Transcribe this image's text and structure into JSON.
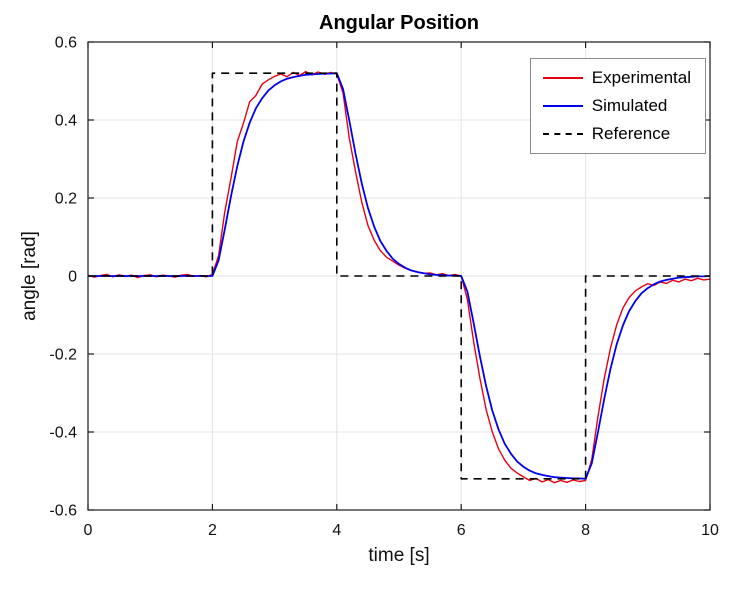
{
  "chart_data": {
    "type": "line",
    "title": "Angular Position",
    "xlabel": "time [s]",
    "ylabel": "angle [rad]",
    "xlim": [
      0,
      10
    ],
    "ylim": [
      -0.6,
      0.6
    ],
    "xticks": [
      0,
      2,
      4,
      6,
      8,
      10
    ],
    "xtick_labels": [
      "0",
      "2",
      "4",
      "6",
      "8",
      "10"
    ],
    "yticks": [
      -0.6,
      -0.4,
      -0.2,
      0,
      0.2,
      0.4,
      0.6
    ],
    "ytick_labels": [
      "-0.6",
      "-0.4",
      "-0.2",
      "0",
      "0.2",
      "0.4",
      "0.6"
    ],
    "grid": true,
    "legend_position": "top-right",
    "series": [
      {
        "name": "Experimental",
        "color": "#e60012",
        "dash": "solid",
        "width": 1.4,
        "t0": 0,
        "dt": 0.1,
        "y": [
          0.002,
          -0.003,
          0.001,
          0.004,
          -0.002,
          0.003,
          -0.001,
          0.002,
          -0.004,
          0.001,
          0.003,
          -0.002,
          0.002,
          0.0,
          -0.003,
          0.002,
          0.004,
          -0.001,
          0.001,
          -0.002,
          0.004,
          0.052,
          0.165,
          0.252,
          0.345,
          0.392,
          0.447,
          0.463,
          0.492,
          0.503,
          0.512,
          0.518,
          0.511,
          0.522,
          0.514,
          0.524,
          0.516,
          0.523,
          0.517,
          0.522,
          0.518,
          0.47,
          0.355,
          0.268,
          0.19,
          0.13,
          0.092,
          0.065,
          0.048,
          0.038,
          0.028,
          0.02,
          0.014,
          0.01,
          0.007,
          0.008,
          0.003,
          0.006,
          0.001,
          0.004,
          0.0,
          -0.06,
          -0.168,
          -0.262,
          -0.342,
          -0.4,
          -0.443,
          -0.472,
          -0.493,
          -0.505,
          -0.515,
          -0.524,
          -0.519,
          -0.528,
          -0.522,
          -0.53,
          -0.524,
          -0.529,
          -0.523,
          -0.527,
          -0.524,
          -0.47,
          -0.36,
          -0.262,
          -0.185,
          -0.125,
          -0.082,
          -0.055,
          -0.038,
          -0.028,
          -0.02,
          -0.024,
          -0.015,
          -0.019,
          -0.011,
          -0.015,
          -0.008,
          -0.012,
          -0.006,
          -0.01,
          -0.008
        ]
      },
      {
        "name": "Simulated",
        "color": "#0000ee",
        "dash": "solid",
        "width": 1.8,
        "t0": 0,
        "dt": 0.1,
        "y": [
          0,
          0,
          0,
          0,
          0,
          0,
          0,
          0,
          0,
          0,
          0,
          0,
          0,
          0,
          0,
          0,
          0,
          0,
          0,
          0,
          0,
          0.04,
          0.12,
          0.206,
          0.282,
          0.345,
          0.393,
          0.43,
          0.456,
          0.476,
          0.489,
          0.499,
          0.506,
          0.51,
          0.513,
          0.516,
          0.517,
          0.518,
          0.519,
          0.519,
          0.52,
          0.48,
          0.4,
          0.314,
          0.238,
          0.175,
          0.127,
          0.09,
          0.064,
          0.044,
          0.031,
          0.021,
          0.014,
          0.01,
          0.007,
          0.004,
          0.003,
          0.002,
          0.001,
          0.001,
          0.0,
          -0.04,
          -0.12,
          -0.206,
          -0.282,
          -0.345,
          -0.393,
          -0.43,
          -0.456,
          -0.476,
          -0.489,
          -0.499,
          -0.506,
          -0.51,
          -0.513,
          -0.516,
          -0.517,
          -0.518,
          -0.519,
          -0.519,
          -0.52,
          -0.48,
          -0.4,
          -0.314,
          -0.238,
          -0.175,
          -0.127,
          -0.09,
          -0.064,
          -0.044,
          -0.031,
          -0.021,
          -0.014,
          -0.01,
          -0.007,
          -0.004,
          -0.003,
          -0.002,
          -0.001,
          -0.001,
          0.0
        ]
      },
      {
        "name": "Reference",
        "color": "#000000",
        "dash": "dashed",
        "width": 1.6,
        "x": [
          0,
          2,
          2,
          4,
          4,
          6,
          6,
          8,
          8,
          10
        ],
        "y": [
          0,
          0,
          0.52,
          0.52,
          0,
          0,
          -0.52,
          -0.52,
          0,
          0
        ]
      }
    ]
  }
}
